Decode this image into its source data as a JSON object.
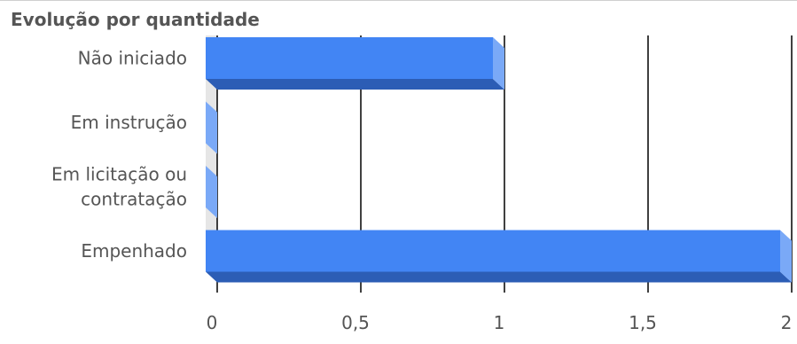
{
  "chart_data": {
    "type": "bar",
    "orientation": "horizontal",
    "style": "3d",
    "title": "Evolução por quantidade",
    "categories": [
      "Não iniciado",
      "Em instrução",
      "Em licitação ou contratação",
      "Empenhado"
    ],
    "category_lines": [
      [
        "Não iniciado"
      ],
      [
        "Em instrução"
      ],
      [
        "Em licitação ou",
        "contratação"
      ],
      [
        "Empenhado"
      ]
    ],
    "values": [
      1,
      0,
      0,
      2
    ],
    "xlim": [
      0,
      2
    ],
    "x_ticks": [
      0,
      0.5,
      1,
      1.5,
      2
    ],
    "x_tick_labels": [
      "0",
      "0,5",
      "1",
      "1,5",
      "2"
    ],
    "grid": true,
    "legend": "none",
    "colors": {
      "bar_front": "#4285f4",
      "bar_side": "#7aa9f7",
      "bar_bottom": "#2c5db5",
      "floor": "#e6e6e6",
      "gridline": "#000000",
      "text": "#555555"
    }
  }
}
